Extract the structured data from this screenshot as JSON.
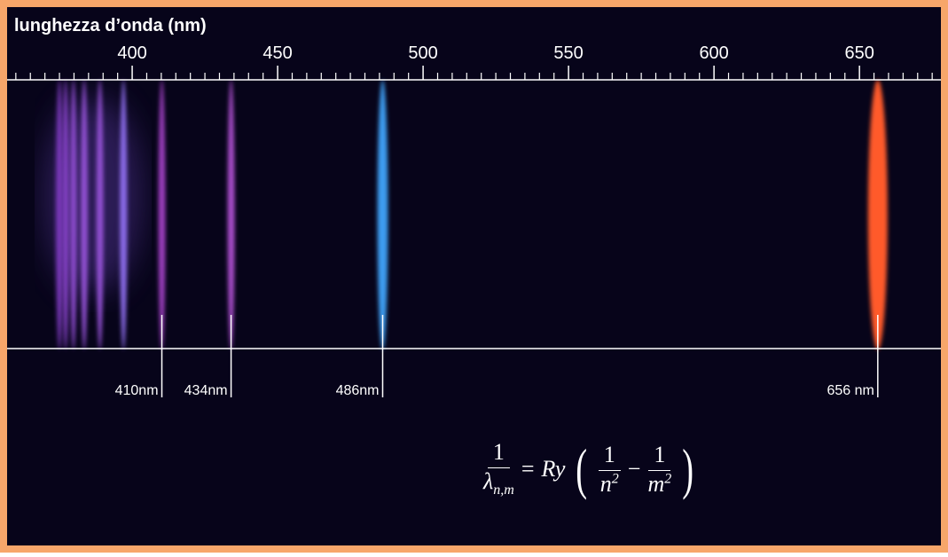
{
  "title": "lunghezza d’onda (nm)",
  "axis": {
    "xlim": [
      357,
      678
    ],
    "ticks": [
      400,
      450,
      500,
      550,
      600,
      650
    ],
    "minor_ticks": [
      360,
      365,
      370,
      375,
      380,
      385,
      390,
      395,
      405,
      410,
      415,
      420,
      425,
      430,
      435,
      440,
      445,
      455,
      460,
      465,
      470,
      475,
      480,
      485,
      490,
      495,
      505,
      510,
      515,
      520,
      525,
      530,
      535,
      540,
      545,
      555,
      560,
      565,
      570,
      575,
      580,
      585,
      590,
      595,
      605,
      610,
      615,
      620,
      625,
      630,
      635,
      640,
      645,
      655,
      660,
      665,
      670,
      675
    ]
  },
  "lines": [
    {
      "wavelength": 656.3,
      "label": "656 nm",
      "color": "#ff5a2a"
    },
    {
      "wavelength": 486.1,
      "label": "486nm",
      "color": "#3c9cf0"
    },
    {
      "wavelength": 434.0,
      "label": "434nm",
      "color": "#a64cc8"
    },
    {
      "wavelength": 410.2,
      "label": "410nm",
      "color": "#9a3cbc"
    },
    {
      "wavelength": 397.0,
      "color": "#8a6ae8"
    },
    {
      "wavelength": 388.9,
      "color": "#9050d0"
    },
    {
      "wavelength": 383.5,
      "color": "#9050d0"
    },
    {
      "wavelength": 379.8,
      "color": "#8848c8"
    },
    {
      "wavelength": 377.1,
      "color": "#8040c0"
    },
    {
      "wavelength": 375.0,
      "color": "#7838b8"
    }
  ],
  "formula": {
    "lhs_numerator": "1",
    "lhs_denominator": "λ",
    "lhs_subscript": "n,m",
    "equals": "=",
    "constant": "Ry",
    "open": "(",
    "t1_numerator": "1",
    "t1_denominator": "n",
    "t1_exponent": "2",
    "minus": "−",
    "t2_numerator": "1",
    "t2_denominator": "m",
    "t2_exponent": "2",
    "close": ")"
  }
}
